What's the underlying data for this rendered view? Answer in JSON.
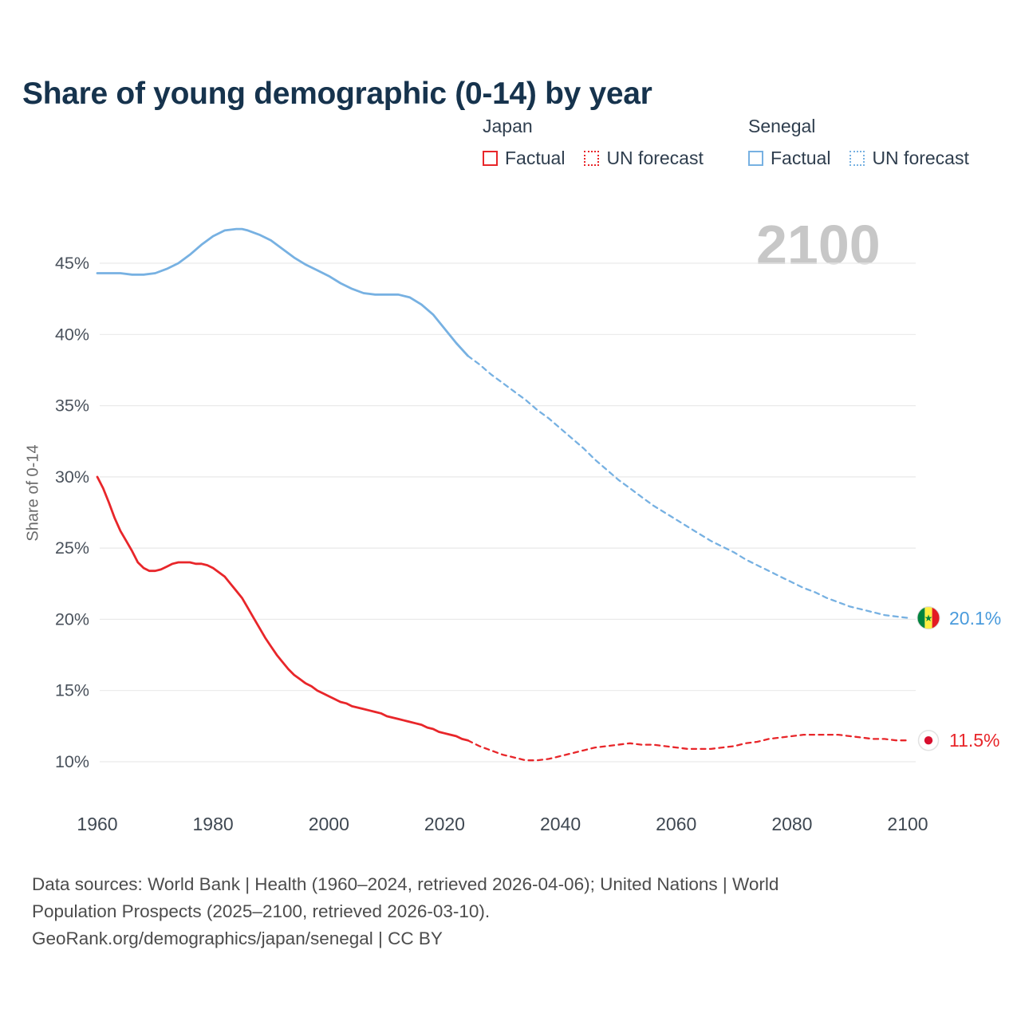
{
  "title": "Share of young demographic (0-14) by year",
  "watermark": "2100",
  "legend": {
    "groups": [
      {
        "name": "Japan",
        "color": "#e8262a",
        "items": [
          {
            "label": "Factual",
            "style": "solid"
          },
          {
            "label": "UN forecast",
            "style": "dashed"
          }
        ]
      },
      {
        "name": "Senegal",
        "color": "#77b1e2",
        "items": [
          {
            "label": "Factual",
            "style": "solid"
          },
          {
            "label": "UN forecast",
            "style": "dashed"
          }
        ]
      }
    ]
  },
  "footer": {
    "sources_line1": "Data sources: World Bank | Health (1960–2024, retrieved 2026-04-06); United Nations | World",
    "sources_line2": "Population Prospects (2025–2100, retrieved 2026-03-10).",
    "attribution": "GeoRank.org/demographics/japan/senegal | CC BY"
  },
  "chart_data": {
    "type": "line",
    "title": "Share of young demographic (0-14) by year",
    "xlabel": "",
    "ylabel": "Share of 0-14",
    "xlim": [
      1960,
      2100
    ],
    "ylim": [
      10,
      45
    ],
    "grid": "horizontal",
    "legend_position": "top-right",
    "yticks": [
      10,
      15,
      20,
      25,
      30,
      35,
      40,
      45
    ],
    "ytick_suffix": "%",
    "xticks": [
      1960,
      1980,
      2000,
      2020,
      2040,
      2060,
      2080,
      2100
    ],
    "series": [
      {
        "name": "Japan Factual",
        "color": "#e8262a",
        "style": "solid",
        "points": [
          [
            1960,
            30.0
          ],
          [
            1961,
            29.2
          ],
          [
            1962,
            28.2
          ],
          [
            1963,
            27.1
          ],
          [
            1964,
            26.2
          ],
          [
            1965,
            25.5
          ],
          [
            1966,
            24.8
          ],
          [
            1967,
            24.0
          ],
          [
            1968,
            23.6
          ],
          [
            1969,
            23.4
          ],
          [
            1970,
            23.4
          ],
          [
            1971,
            23.5
          ],
          [
            1972,
            23.7
          ],
          [
            1973,
            23.9
          ],
          [
            1974,
            24.0
          ],
          [
            1975,
            24.0
          ],
          [
            1976,
            24.0
          ],
          [
            1977,
            23.9
          ],
          [
            1978,
            23.9
          ],
          [
            1979,
            23.8
          ],
          [
            1980,
            23.6
          ],
          [
            1981,
            23.3
          ],
          [
            1982,
            23.0
          ],
          [
            1983,
            22.5
          ],
          [
            1984,
            22.0
          ],
          [
            1985,
            21.5
          ],
          [
            1986,
            20.8
          ],
          [
            1987,
            20.1
          ],
          [
            1988,
            19.4
          ],
          [
            1989,
            18.7
          ],
          [
            1990,
            18.1
          ],
          [
            1991,
            17.5
          ],
          [
            1992,
            17.0
          ],
          [
            1993,
            16.5
          ],
          [
            1994,
            16.1
          ],
          [
            1995,
            15.8
          ],
          [
            1996,
            15.5
          ],
          [
            1997,
            15.3
          ],
          [
            1998,
            15.0
          ],
          [
            1999,
            14.8
          ],
          [
            2000,
            14.6
          ],
          [
            2001,
            14.4
          ],
          [
            2002,
            14.2
          ],
          [
            2003,
            14.1
          ],
          [
            2004,
            13.9
          ],
          [
            2005,
            13.8
          ],
          [
            2006,
            13.7
          ],
          [
            2007,
            13.6
          ],
          [
            2008,
            13.5
          ],
          [
            2009,
            13.4
          ],
          [
            2010,
            13.2
          ],
          [
            2011,
            13.1
          ],
          [
            2012,
            13.0
          ],
          [
            2013,
            12.9
          ],
          [
            2014,
            12.8
          ],
          [
            2015,
            12.7
          ],
          [
            2016,
            12.6
          ],
          [
            2017,
            12.4
          ],
          [
            2018,
            12.3
          ],
          [
            2019,
            12.1
          ],
          [
            2020,
            12.0
          ],
          [
            2021,
            11.9
          ],
          [
            2022,
            11.8
          ],
          [
            2023,
            11.6
          ],
          [
            2024,
            11.5
          ]
        ]
      },
      {
        "name": "Japan UN forecast",
        "color": "#e8262a",
        "style": "dashed",
        "points": [
          [
            2024,
            11.5
          ],
          [
            2026,
            11.1
          ],
          [
            2028,
            10.8
          ],
          [
            2030,
            10.5
          ],
          [
            2032,
            10.3
          ],
          [
            2034,
            10.1
          ],
          [
            2036,
            10.1
          ],
          [
            2038,
            10.2
          ],
          [
            2040,
            10.4
          ],
          [
            2042,
            10.6
          ],
          [
            2044,
            10.8
          ],
          [
            2046,
            11.0
          ],
          [
            2048,
            11.1
          ],
          [
            2050,
            11.2
          ],
          [
            2052,
            11.3
          ],
          [
            2054,
            11.2
          ],
          [
            2056,
            11.2
          ],
          [
            2058,
            11.1
          ],
          [
            2060,
            11.0
          ],
          [
            2062,
            10.9
          ],
          [
            2064,
            10.9
          ],
          [
            2066,
            10.9
          ],
          [
            2068,
            11.0
          ],
          [
            2070,
            11.1
          ],
          [
            2072,
            11.3
          ],
          [
            2074,
            11.4
          ],
          [
            2076,
            11.6
          ],
          [
            2078,
            11.7
          ],
          [
            2080,
            11.8
          ],
          [
            2082,
            11.9
          ],
          [
            2084,
            11.9
          ],
          [
            2086,
            11.9
          ],
          [
            2088,
            11.9
          ],
          [
            2090,
            11.8
          ],
          [
            2092,
            11.7
          ],
          [
            2094,
            11.6
          ],
          [
            2096,
            11.6
          ],
          [
            2098,
            11.5
          ],
          [
            2100,
            11.5
          ]
        ]
      },
      {
        "name": "Senegal Factual",
        "color": "#77b1e2",
        "style": "solid",
        "points": [
          [
            1960,
            44.3
          ],
          [
            1962,
            44.3
          ],
          [
            1964,
            44.3
          ],
          [
            1966,
            44.2
          ],
          [
            1968,
            44.2
          ],
          [
            1970,
            44.3
          ],
          [
            1972,
            44.6
          ],
          [
            1974,
            45.0
          ],
          [
            1976,
            45.6
          ],
          [
            1978,
            46.3
          ],
          [
            1980,
            46.9
          ],
          [
            1982,
            47.3
          ],
          [
            1984,
            47.4
          ],
          [
            1985,
            47.4
          ],
          [
            1986,
            47.3
          ],
          [
            1988,
            47.0
          ],
          [
            1990,
            46.6
          ],
          [
            1992,
            46.0
          ],
          [
            1994,
            45.4
          ],
          [
            1996,
            44.9
          ],
          [
            1998,
            44.5
          ],
          [
            2000,
            44.1
          ],
          [
            2002,
            43.6
          ],
          [
            2004,
            43.2
          ],
          [
            2006,
            42.9
          ],
          [
            2008,
            42.8
          ],
          [
            2010,
            42.8
          ],
          [
            2012,
            42.8
          ],
          [
            2014,
            42.6
          ],
          [
            2016,
            42.1
          ],
          [
            2018,
            41.4
          ],
          [
            2020,
            40.4
          ],
          [
            2022,
            39.4
          ],
          [
            2024,
            38.5
          ]
        ]
      },
      {
        "name": "Senegal UN forecast",
        "color": "#77b1e2",
        "style": "dashed",
        "points": [
          [
            2024,
            38.5
          ],
          [
            2026,
            37.9
          ],
          [
            2028,
            37.2
          ],
          [
            2030,
            36.6
          ],
          [
            2032,
            36.0
          ],
          [
            2034,
            35.4
          ],
          [
            2036,
            34.7
          ],
          [
            2038,
            34.1
          ],
          [
            2040,
            33.4
          ],
          [
            2042,
            32.7
          ],
          [
            2044,
            32.0
          ],
          [
            2046,
            31.2
          ],
          [
            2048,
            30.5
          ],
          [
            2050,
            29.8
          ],
          [
            2052,
            29.2
          ],
          [
            2054,
            28.6
          ],
          [
            2056,
            28.0
          ],
          [
            2058,
            27.5
          ],
          [
            2060,
            27.0
          ],
          [
            2062,
            26.5
          ],
          [
            2064,
            26.0
          ],
          [
            2066,
            25.5
          ],
          [
            2068,
            25.1
          ],
          [
            2070,
            24.7
          ],
          [
            2072,
            24.2
          ],
          [
            2074,
            23.8
          ],
          [
            2076,
            23.4
          ],
          [
            2078,
            23.0
          ],
          [
            2080,
            22.6
          ],
          [
            2082,
            22.2
          ],
          [
            2084,
            21.9
          ],
          [
            2086,
            21.5
          ],
          [
            2088,
            21.2
          ],
          [
            2090,
            20.9
          ],
          [
            2092,
            20.7
          ],
          [
            2094,
            20.5
          ],
          [
            2096,
            20.3
          ],
          [
            2098,
            20.2
          ],
          [
            2100,
            20.1
          ]
        ]
      }
    ],
    "end_markers": [
      {
        "series": "Senegal",
        "value": 20.1,
        "label": "20.1%",
        "label_color": "#4a9bdc",
        "type": "senegal-flag",
        "flag_colors": [
          "#00853F",
          "#FDEF42",
          "#E31B23"
        ]
      },
      {
        "series": "Japan",
        "value": 11.5,
        "label": "11.5%",
        "label_color": "#e8262a",
        "type": "japan-flag",
        "flag_colors": [
          "#ffffff",
          "#d80f2e"
        ]
      }
    ]
  }
}
